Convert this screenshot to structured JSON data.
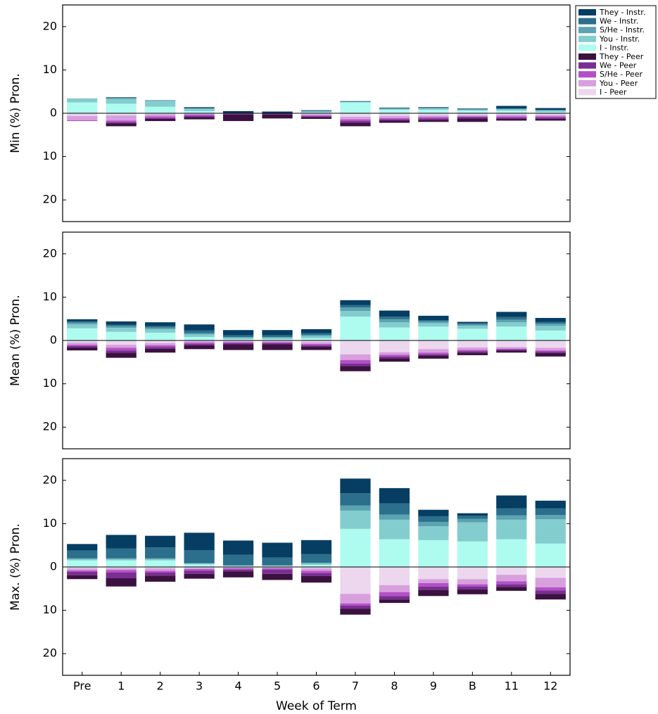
{
  "chart_data": [
    {
      "type": "bar",
      "stacked": true,
      "ylabel": "Min (%) Pron.",
      "legend": "outside-right",
      "ylim": [
        -25,
        25
      ],
      "yticks": [
        {
          "value": -20,
          "label": "20"
        },
        {
          "value": -10,
          "label": "10"
        },
        0,
        10,
        20
      ],
      "series": [
        {
          "name": "They - Instr.",
          "color": "#053d63",
          "values": [
            0,
            0.1,
            0,
            0.2,
            0.5,
            0.4,
            0.1,
            0.1,
            0.1,
            0.1,
            0.1,
            0.6,
            0.4
          ]
        },
        {
          "name": "We - Instr.",
          "color": "#2b6f8c",
          "values": [
            0,
            0.1,
            0.1,
            0.1,
            0,
            0,
            0.1,
            0,
            0.1,
            0.1,
            0.1,
            0.1,
            0.1
          ]
        },
        {
          "name": "S/He - Instr.",
          "color": "#5ba3b0",
          "values": [
            0.1,
            0.2,
            0.1,
            0.1,
            0,
            0,
            0.1,
            0.1,
            0.1,
            0.1,
            0.1,
            0.1,
            0.1
          ]
        },
        {
          "name": "You - Instr.",
          "color": "#83cdcf",
          "values": [
            0.8,
            1.1,
            1.3,
            0.5,
            0,
            0,
            0.2,
            0.1,
            0.2,
            0.3,
            0.2,
            0.3,
            0.3
          ]
        },
        {
          "name": "I - Instr.",
          "color": "#aefcef",
          "values": [
            2.5,
            2.2,
            1.5,
            0.5,
            0,
            0,
            0.2,
            2.5,
            0.8,
            0.8,
            0.6,
            0.6,
            0.3
          ]
        },
        {
          "name": "They - Peer",
          "color": "#3b1140",
          "values": [
            0,
            -0.7,
            -0.5,
            -0.5,
            -1.5,
            -0.9,
            -0.4,
            -0.8,
            -0.5,
            -0.5,
            -0.8,
            -0.4,
            -0.4
          ]
        },
        {
          "name": "We - Peer",
          "color": "#7a2e91",
          "values": [
            0,
            -0.2,
            -0.2,
            -0.3,
            -0.2,
            -0.3,
            -0.2,
            -0.4,
            -0.3,
            -0.3,
            -0.3,
            -0.3,
            -0.3
          ]
        },
        {
          "name": "S/He - Peer",
          "color": "#b450c8",
          "values": [
            -0.2,
            -0.4,
            -0.4,
            -0.3,
            -0.1,
            0,
            -0.2,
            -0.4,
            -0.3,
            -0.3,
            -0.2,
            -0.3,
            -0.3
          ]
        },
        {
          "name": "You - Peer",
          "color": "#d7a0dd",
          "values": [
            -1.0,
            -1.2,
            -0.5,
            -0.2,
            0,
            0,
            -0.3,
            -0.6,
            -0.5,
            -0.4,
            -0.3,
            -0.4,
            -0.3
          ]
        },
        {
          "name": "I - Peer",
          "color": "#ecd7ef",
          "values": [
            -0.6,
            -0.5,
            -0.2,
            -0.1,
            0,
            0,
            -0.2,
            -0.8,
            -0.6,
            -0.5,
            -0.4,
            -0.3,
            -0.4
          ]
        }
      ]
    },
    {
      "type": "bar",
      "stacked": true,
      "ylabel": "Mean (%) Pron.",
      "ylim": [
        -25,
        25
      ],
      "yticks": [
        {
          "value": -20,
          "label": "20"
        },
        {
          "value": -10,
          "label": "10"
        },
        0,
        10,
        20
      ],
      "series": [
        {
          "name": "They - Instr.",
          "color": "#053d63",
          "values": [
            0.5,
            0.8,
            0.9,
            1.4,
            1.2,
            1.2,
            0.9,
            1.1,
            1.4,
            1.0,
            0.3,
            1.2,
            0.9
          ]
        },
        {
          "name": "We - Instr.",
          "color": "#2b6f8c",
          "values": [
            0.3,
            0.3,
            0.3,
            0.6,
            0.4,
            0.4,
            0.4,
            0.6,
            0.6,
            0.3,
            0.3,
            0.6,
            0.4
          ]
        },
        {
          "name": "S/He - Instr.",
          "color": "#5ba3b0",
          "values": [
            0.4,
            0.4,
            0.4,
            0.3,
            0.2,
            0.2,
            0.3,
            0.8,
            0.7,
            0.4,
            0.3,
            0.6,
            0.5
          ]
        },
        {
          "name": "You - Instr.",
          "color": "#83cdcf",
          "values": [
            0.9,
            0.9,
            0.8,
            0.6,
            0.3,
            0.3,
            0.5,
            1.3,
            1.2,
            0.8,
            0.7,
            1.0,
            1.1
          ]
        },
        {
          "name": "I - Instr.",
          "color": "#aefcef",
          "values": [
            2.8,
            2.0,
            1.8,
            0.8,
            0.3,
            0.3,
            0.5,
            5.5,
            3.0,
            3.2,
            2.7,
            3.2,
            2.3
          ]
        },
        {
          "name": "They - Peer",
          "color": "#3b1140",
          "values": [
            -0.7,
            -1.2,
            -0.9,
            -0.9,
            -1.3,
            -1.3,
            -0.8,
            -1.2,
            -0.8,
            -0.7,
            -0.6,
            -0.5,
            -0.8
          ]
        },
        {
          "name": "We - Peer",
          "color": "#7a2e91",
          "values": [
            -0.3,
            -0.5,
            -0.4,
            -0.3,
            -0.3,
            -0.3,
            -0.3,
            -0.6,
            -0.4,
            -0.3,
            -0.3,
            -0.2,
            -0.3
          ]
        },
        {
          "name": "S/He - Peer",
          "color": "#b450c8",
          "values": [
            -0.3,
            -0.6,
            -0.4,
            -0.3,
            -0.2,
            -0.2,
            -0.3,
            -0.8,
            -0.4,
            -0.4,
            -0.3,
            -0.2,
            -0.3
          ]
        },
        {
          "name": "You - Peer",
          "color": "#d7a0dd",
          "values": [
            -0.5,
            -0.7,
            -0.5,
            -0.3,
            -0.2,
            -0.2,
            -0.4,
            -1.3,
            -0.6,
            -0.8,
            -0.6,
            -0.4,
            -0.6
          ]
        },
        {
          "name": "I - Peer",
          "color": "#ecd7ef",
          "values": [
            -0.5,
            -1.0,
            -0.6,
            -0.2,
            -0.2,
            -0.2,
            -0.4,
            -3.2,
            -2.7,
            -2.0,
            -1.6,
            -1.5,
            -1.7
          ]
        }
      ]
    },
    {
      "type": "bar",
      "stacked": true,
      "ylabel": "Max. (%) Pron.",
      "xlabel": "Week of Term",
      "categories": [
        "Pre",
        "1",
        "2",
        "3",
        "4",
        "5",
        "6",
        "7",
        "8",
        "9",
        "B",
        "11",
        "12"
      ],
      "ylim": [
        -25,
        25
      ],
      "yticks": [
        {
          "value": -20,
          "label": "20"
        },
        {
          "value": -10,
          "label": "10"
        },
        0,
        10,
        20
      ],
      "series": [
        {
          "name": "They - Instr.",
          "color": "#053d63",
          "values": [
            1.5,
            3.1,
            2.7,
            4.0,
            3.3,
            3.4,
            3.2,
            3.4,
            3.5,
            1.5,
            0.6,
            3.0,
            1.8
          ]
        },
        {
          "name": "We - Instr.",
          "color": "#2b6f8c",
          "values": [
            1.8,
            2.3,
            2.5,
            3.0,
            2.4,
            1.8,
            2.0,
            2.8,
            2.6,
            1.3,
            0.7,
            1.6,
            1.5
          ]
        },
        {
          "name": "S/He - Instr.",
          "color": "#5ba3b0",
          "values": [
            0.2,
            0.2,
            0.2,
            0.1,
            0.1,
            0.1,
            0.2,
            1.2,
            1.2,
            1.0,
            0.8,
            1.0,
            1.0
          ]
        },
        {
          "name": "You - Instr.",
          "color": "#83cdcf",
          "values": [
            0.3,
            0.3,
            0.3,
            0.2,
            0.1,
            0.1,
            0.3,
            4.2,
            4.5,
            3.2,
            4.4,
            4.5,
            5.6
          ]
        },
        {
          "name": "I - Instr.",
          "color": "#aefcef",
          "values": [
            1.5,
            1.5,
            1.5,
            0.6,
            0.2,
            0.2,
            0.5,
            8.8,
            6.4,
            6.2,
            5.9,
            6.4,
            5.4
          ]
        },
        {
          "name": "They - Peer",
          "color": "#3b1140",
          "values": [
            -0.9,
            -1.9,
            -1.4,
            -1.1,
            -1.4,
            -1.4,
            -1.5,
            -1.4,
            -0.8,
            -1.4,
            -1.1,
            -0.9,
            -1.3
          ]
        },
        {
          "name": "We - Peer",
          "color": "#7a2e91",
          "values": [
            -0.8,
            -1.3,
            -0.7,
            -0.7,
            -0.4,
            -1.0,
            -0.7,
            -0.7,
            -0.8,
            -0.8,
            -0.7,
            -0.6,
            -0.8
          ]
        },
        {
          "name": "S/He - Peer",
          "color": "#b450c8",
          "values": [
            -0.3,
            -0.6,
            -0.4,
            -0.4,
            -0.3,
            -0.3,
            -0.5,
            -0.5,
            -0.9,
            -0.8,
            -0.5,
            -0.7,
            -0.7
          ]
        },
        {
          "name": "You - Peer",
          "color": "#d7a0dd",
          "values": [
            -0.5,
            -0.4,
            -0.6,
            -0.3,
            -0.2,
            -0.2,
            -0.6,
            -2.2,
            -1.6,
            -0.9,
            -1.2,
            -1.5,
            -2.2
          ]
        },
        {
          "name": "I - Peer",
          "color": "#ecd7ef",
          "values": [
            -0.3,
            -0.3,
            -0.3,
            -0.2,
            -0.1,
            -0.1,
            -0.3,
            -6.2,
            -4.2,
            -2.8,
            -2.8,
            -1.8,
            -2.5
          ]
        }
      ]
    }
  ]
}
